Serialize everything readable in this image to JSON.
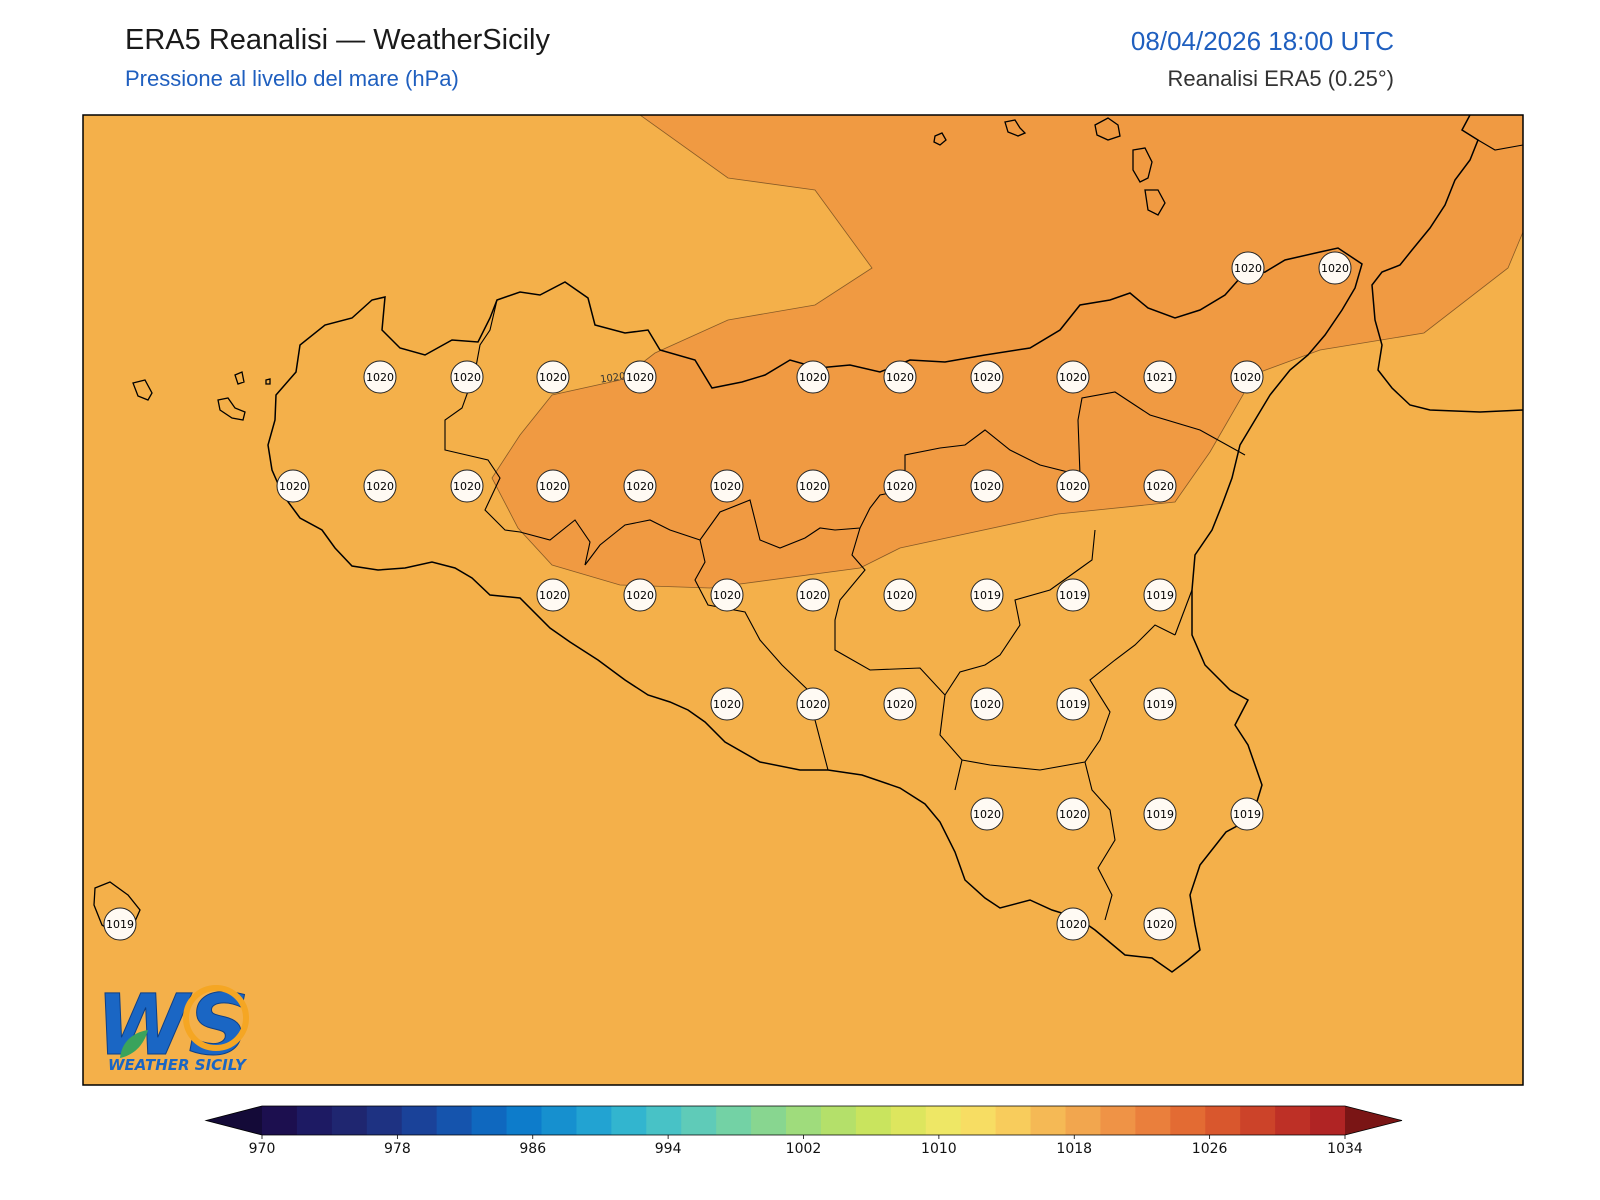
{
  "header": {
    "title": "ERA5 Reanalisi — WeatherSicily",
    "subtitle": "Pressione al livello del mare (hPa)",
    "datetime": "08/04/2026 18:00 UTC",
    "source": "Reanalisi ERA5 (0.25°)"
  },
  "map": {
    "fill_colors": {
      "band_1018_1022": "#f4b04a",
      "band_1020_1022": "#f09a42"
    },
    "coastline_color": "#000000",
    "contour_label": "1020"
  },
  "stations": [
    {
      "value": "1020"
    },
    {
      "value": "1020"
    },
    {
      "value": "1020"
    },
    {
      "value": "1020"
    },
    {
      "value": "1020"
    },
    {
      "value": "1020"
    },
    {
      "value": "1020"
    },
    {
      "value": "1020"
    },
    {
      "value": "1020"
    },
    {
      "value": "1020"
    },
    {
      "value": "1021"
    },
    {
      "value": "1020"
    },
    {
      "value": "1020"
    },
    {
      "value": "1020"
    },
    {
      "value": "1020"
    },
    {
      "value": "1020"
    },
    {
      "value": "1020"
    },
    {
      "value": "1020"
    },
    {
      "value": "1020"
    },
    {
      "value": "1020"
    },
    {
      "value": "1020"
    },
    {
      "value": "1020"
    },
    {
      "value": "1020"
    },
    {
      "value": "1020"
    },
    {
      "value": "1020"
    },
    {
      "value": "1020"
    },
    {
      "value": "1020"
    },
    {
      "value": "1020"
    },
    {
      "value": "1019"
    },
    {
      "value": "1019"
    },
    {
      "value": "1019"
    },
    {
      "value": "1020"
    },
    {
      "value": "1020"
    },
    {
      "value": "1020"
    },
    {
      "value": "1020"
    },
    {
      "value": "1019"
    },
    {
      "value": "1019"
    },
    {
      "value": "1020"
    },
    {
      "value": "1020"
    },
    {
      "value": "1019"
    },
    {
      "value": "1019"
    },
    {
      "value": "1020"
    },
    {
      "value": "1020"
    },
    {
      "value": "1019"
    }
  ],
  "colorbar": {
    "ticks": [
      "970",
      "978",
      "986",
      "994",
      "1002",
      "1010",
      "1018",
      "1026",
      "1034"
    ],
    "colors": [
      "#1c0f4f",
      "#1d1a63",
      "#1f2670",
      "#1e3282",
      "#1a4299",
      "#1554ad",
      "#0f68bf",
      "#0d7ccb",
      "#1690cf",
      "#22a3d2",
      "#32b5cf",
      "#48c2c6",
      "#5fcbb8",
      "#73d2a5",
      "#88d690",
      "#9fdc7c",
      "#b4e06a",
      "#c9e45e",
      "#dde65e",
      "#eee765",
      "#f7dd63",
      "#f8cc5c",
      "#f5b955",
      "#f2a64e",
      "#ef9346",
      "#ea7f3c",
      "#e36b33",
      "#d9572d",
      "#cc4329",
      "#be3026",
      "#b02424"
    ],
    "under_color": "#140a38",
    "over_color": "#7a1515"
  },
  "logo": {
    "letters": "WS",
    "name": "WEATHER SICILY",
    "colors": {
      "primary": "#1a66c4",
      "accent": "#f5a623",
      "leaf": "#3aa35c"
    }
  }
}
